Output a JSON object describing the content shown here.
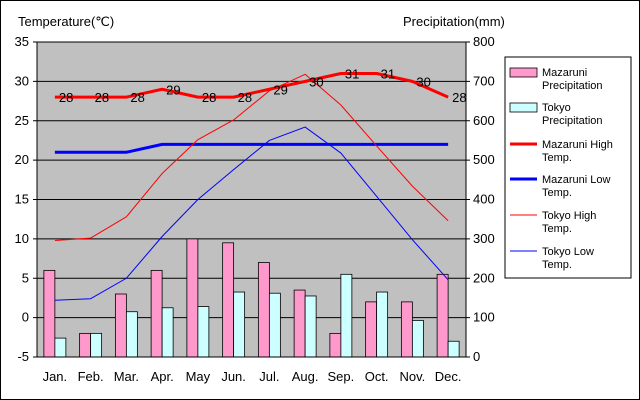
{
  "chart_data": {
    "type": "bar",
    "ylabel_left": "Temperature(℃)",
    "ylabel_right": "Precipitation(mm)",
    "categories": [
      "Jan.",
      "Feb.",
      "Mar.",
      "Apr.",
      "May",
      "Jun.",
      "Jul.",
      "Aug.",
      "Sep.",
      "Oct.",
      "Nov.",
      "Dec."
    ],
    "ylim_left": [
      -5,
      35
    ],
    "yticks_left": [
      -5,
      0,
      5,
      10,
      15,
      20,
      25,
      30,
      35
    ],
    "ylim_right": [
      0,
      800
    ],
    "yticks_right": [
      0,
      100,
      200,
      300,
      400,
      500,
      600,
      700,
      800
    ],
    "grid": true,
    "legend_position": "right",
    "bar_series": [
      {
        "name": "Mazaruni Precipitation",
        "color": "#ff99cc",
        "values": [
          220,
          60,
          160,
          220,
          300,
          290,
          240,
          170,
          60,
          140,
          140,
          210
        ]
      },
      {
        "name": "Tokyo Precipitation",
        "color": "#ccffff",
        "values": [
          48,
          60,
          115,
          125,
          128,
          165,
          162,
          155,
          210,
          165,
          93,
          40
        ]
      }
    ],
    "line_series": [
      {
        "name": "Mazaruni High Temp.",
        "color": "#ff0000",
        "width": "thick",
        "values": [
          28,
          28,
          28,
          29,
          28,
          28,
          29,
          30,
          31,
          31,
          30,
          28
        ],
        "labels": [
          "28",
          "28",
          "28",
          "29",
          "28",
          "28",
          "29",
          "30",
          "31",
          "31",
          "30",
          "28"
        ]
      },
      {
        "name": "Mazaruni Low Temp.",
        "color": "#0000ff",
        "width": "thick",
        "values": [
          21,
          21,
          21,
          22,
          22,
          22,
          22,
          22,
          22,
          22,
          22,
          22
        ]
      },
      {
        "name": "Tokyo High Temp.",
        "color": "#ff0000",
        "width": "thin",
        "values": [
          9.8,
          10.1,
          12.8,
          18.3,
          22.6,
          25.1,
          28.8,
          30.9,
          27.0,
          21.8,
          16.7,
          12.3
        ]
      },
      {
        "name": "Tokyo Low Temp.",
        "color": "#0000ff",
        "width": "thin",
        "values": [
          2.2,
          2.4,
          5.0,
          10.3,
          15.0,
          18.8,
          22.5,
          24.2,
          20.9,
          15.4,
          9.9,
          4.8
        ]
      }
    ],
    "legend": [
      {
        "label": "Mazaruni Precipitation",
        "kind": "box",
        "color": "#ff99cc"
      },
      {
        "label": "Tokyo Precipitation",
        "kind": "box",
        "color": "#ccffff"
      },
      {
        "label": "Mazaruni High Temp.",
        "kind": "line",
        "color": "#ff0000",
        "width": "thick"
      },
      {
        "label": "Mazaruni Low Temp.",
        "kind": "line",
        "color": "#0000ff",
        "width": "thick"
      },
      {
        "label": "Tokyo High Temp.",
        "kind": "line",
        "color": "#ff0000",
        "width": "thin"
      },
      {
        "label": "Tokyo Low Temp.",
        "kind": "line",
        "color": "#0000ff",
        "width": "thin"
      }
    ]
  }
}
